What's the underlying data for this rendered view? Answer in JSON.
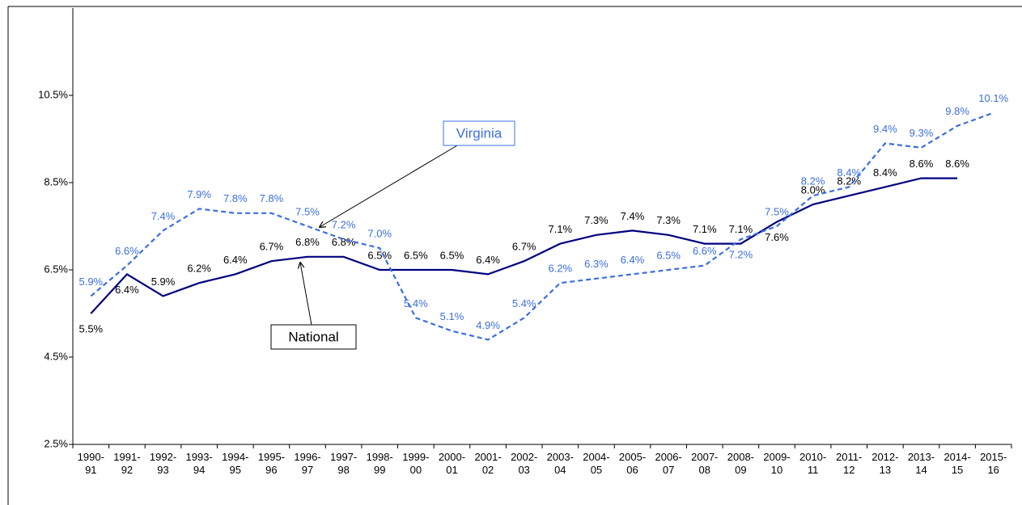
{
  "chart_data": {
    "type": "line",
    "categories": [
      "1990-91",
      "1991-92",
      "1992-93",
      "1993-94",
      "1994-95",
      "1995-96",
      "1996-97",
      "1997-98",
      "1998-99",
      "1999-00",
      "2000-01",
      "2001-02",
      "2002-03",
      "2003-04",
      "2004-05",
      "2005-06",
      "2006-07",
      "2007-08",
      "2008-09",
      "2009-10",
      "2010-11",
      "2011-12",
      "2012-13",
      "2013-14",
      "2014-15",
      "2015-16"
    ],
    "series": [
      {
        "name": "National",
        "color": "#000080",
        "dashed": false,
        "values": [
          5.5,
          6.4,
          5.9,
          6.2,
          6.4,
          6.7,
          6.8,
          6.8,
          6.5,
          6.5,
          6.5,
          6.4,
          6.7,
          7.1,
          7.3,
          7.4,
          7.3,
          7.1,
          7.1,
          7.6,
          8.0,
          8.2,
          8.4,
          8.6,
          8.6,
          null
        ],
        "value_labels": [
          "5.5%",
          "6.4%",
          "5.9%",
          "6.2%",
          "6.4%",
          "6.7%",
          "6.8%",
          "6.8%",
          "6.5%",
          "6.5%",
          "6.5%",
          "6.4%",
          "6.7%",
          "7.1%",
          "7.3%",
          "7.4%",
          "7.3%",
          "7.1%",
          "7.1%",
          "7.6%",
          "8.0%",
          "8.2%",
          "8.4%",
          "8.6%",
          "8.6%",
          null
        ]
      },
      {
        "name": "Virginia",
        "color": "#3b6fe0",
        "dashed": true,
        "values": [
          5.9,
          6.6,
          7.4,
          7.9,
          7.8,
          7.8,
          7.5,
          7.2,
          7.0,
          5.4,
          5.1,
          4.9,
          5.4,
          6.2,
          6.3,
          6.4,
          6.5,
          6.6,
          7.2,
          7.5,
          8.2,
          8.4,
          9.4,
          9.3,
          9.8,
          10.1
        ],
        "value_labels": [
          "5.9%",
          "6.6%",
          "7.4%",
          "7.9%",
          "7.8%",
          "7.8%",
          "7.5%",
          "7.2%",
          "7.0%",
          "5.4%",
          "5.1%",
          "4.9%",
          "5.4%",
          "6.2%",
          "6.3%",
          "6.4%",
          "6.5%",
          "6.6%",
          "7.2%",
          "7.5%",
          "8.2%",
          "8.4%",
          "9.4%",
          "9.3%",
          "9.8%",
          "10.1%"
        ]
      }
    ],
    "ylim": [
      2.5,
      12.5
    ],
    "yticks": [
      {
        "value": 2.5,
        "label": "2.5%"
      },
      {
        "value": 4.5,
        "label": "4.5%"
      },
      {
        "value": 6.5,
        "label": "6.5%"
      },
      {
        "value": 8.5,
        "label": "8.5%"
      },
      {
        "value": 10.5,
        "label": "10.5%"
      }
    ]
  }
}
